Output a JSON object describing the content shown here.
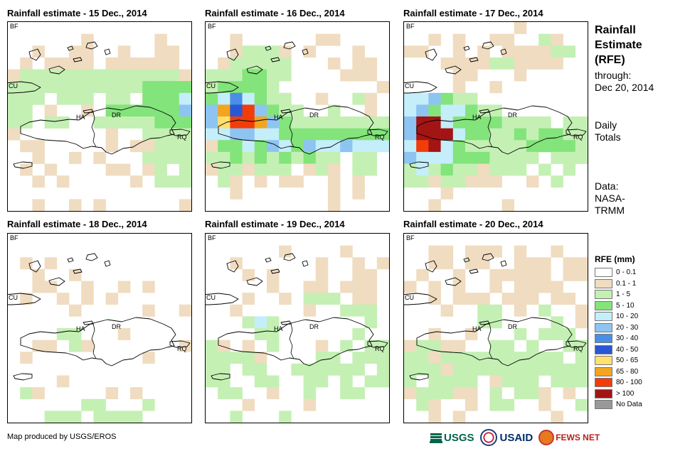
{
  "panels": [
    {
      "title": "Rainfall estimate - 15 Dec., 2014"
    },
    {
      "title": "Rainfall estimate - 16 Dec., 2014"
    },
    {
      "title": "Rainfall estimate - 17 Dec., 2014"
    },
    {
      "title": "Rainfall estimate - 18 Dec., 2014"
    },
    {
      "title": "Rainfall estimate - 19 Dec., 2014"
    },
    {
      "title": "Rainfall estimate - 20 Dec., 2014"
    }
  ],
  "map_labels": {
    "bf": "BF",
    "cu": "CU",
    "ha": "HA",
    "dr": "DR",
    "rq": "RQ"
  },
  "sidebar": {
    "title_lines": [
      "Rainfall",
      "Estimate",
      "(RFE)"
    ],
    "through_label": "through:",
    "through_date": "Dec 20, 2014",
    "daily_lines": [
      "Daily",
      "Totals"
    ],
    "data_lines": [
      "Data:",
      "NASA-",
      "TRMM"
    ]
  },
  "legend": {
    "title": "RFE (mm)",
    "items": [
      {
        "label": "0 - 0.1",
        "color": "#ffffff"
      },
      {
        "label": "0.1 - 1",
        "color": "#f0dcc0"
      },
      {
        "label": "1 - 5",
        "color": "#c4f0b4"
      },
      {
        "label": "5 - 10",
        "color": "#82e47a"
      },
      {
        "label": "10 - 20",
        "color": "#c4eefa"
      },
      {
        "label": "20 - 30",
        "color": "#8ec4f2"
      },
      {
        "label": "30 - 40",
        "color": "#4a8ee6"
      },
      {
        "label": "40 - 50",
        "color": "#2858d6"
      },
      {
        "label": "50 - 65",
        "color": "#ffe070"
      },
      {
        "label": "65 - 80",
        "color": "#f4a41e"
      },
      {
        "label": "80 - 100",
        "color": "#f23c0a"
      },
      {
        "label": "> 100",
        "color": "#a31414"
      },
      {
        "label": "No Data",
        "color": "#999999"
      }
    ]
  },
  "credit": "Map produced by USGS/EROS",
  "logos": {
    "usgs": "USGS",
    "usaid": "USAID",
    "fews": "FEWS NET"
  },
  "map_grids": [
    [
      "...............",
      "......a.....a..",
      "..a..aa..a..aa.",
      ".a.aaaa.aaaaaa.",
      "aggggggggggggga",
      "gggggggggggcccc",
      "ggg.ggg.gg.cccd",
      "gg.a..a.cccccce",
      "gg.gg..gggggccc",
      "a.......a..gggg",
      ".aa.....a.aaggg",
      "..a..a.a...gggg",
      ".a.a....aa.ag.g",
      "..a.a.....a.ggg",
      "...............",
      "..a..a.a......a"
    ],
    [
      "...............",
      "..a......aa....",
      "..aggga.a...a..",
      ".aggggg...a.aa.",
      "gggccgg....aaa.",
      "gccccg........a",
      "cdfdcgg..a..ga.",
      "ejhkecgg..g..a.",
      "eikkjecgggggggg",
      "ddeeddccccccccc",
      "accdcedceddeddd",
      "ggcgcgcgcgg.gg.",
      "aggaggg.aga.gg.",
      ".ga.a.aa..a.a..",
      "..a.......a.a..",
      "..........a...."
    ],
    [
      ".........a.....",
      "..a.a..aa..ga..",
      "aa..a.a.aaaagg.",
      "...aaaaggaaaa..",
      "....aa...a.....",
      "....a..a.......",
      "ddecgg.........",
      "decddcgg.......",
      "elldccccgggg.gg",
      "ellldccggcgccgg",
      "dkldcgggggccccg",
      "edddcccgggg.ggg",
      "gdgcggaggg.g.g.",
      "ggaggaaa..a.g..",
      "...a...........",
      "..a.....a......"
    ],
    [
      "...............",
      "...............",
      ".a.a...........",
      "..a..a.........",
      "..aa..a..a.a...",
      ".a..a.a.a......",
      ".....a.....a..a",
      "...............",
      "....gg...a.....",
      "..aa.ga.......a",
      ".a.........a...",
      "...............",
      "....a..........",
      ".ga.....a.a....",
      "......gg...g...",
      "...ggg.gggg...."
    ],
    [
      "...............",
      "......a....a...",
      "..a......a..a.a",
      "...a.a...a..aa.",
      ".....a..aa.aaa.",
      "...a..a.ggg.aa.",
      "..a.....a..ggg.",
      "...gdg.......g.",
      "....gg......g..",
      "ga.a.g...a.g.gg",
      "gggga....gg.ggg",
      "gg.gg..gggggg.g",
      "gg..gg..gg.g.gg",
      ".gg..a..g..gg..",
      "...a....a......",
      "..g...g........"
    ],
    [
      "...............",
      "..aa.aaa.a..a..",
      "..aa.aa..aaa.aa",
      ".a..a..aaaaa.aa",
      "a.a.a..a.aaaa..",
      "..a.aaa.aaa.aa.",
      "...a..gg.a.g..a",
      "......gg....g.a",
      "..a..a...g.ggg.",
      "aggaa..gg.g..gg",
      "ggagggggggggg.g",
      "gggaggggggggggg",
      "g.gggg.aggg.ggg",
      "agggaa.g.gga.a.",
      ".ga..a.gg..a..g",
      "..a.a.......a.."
    ]
  ]
}
